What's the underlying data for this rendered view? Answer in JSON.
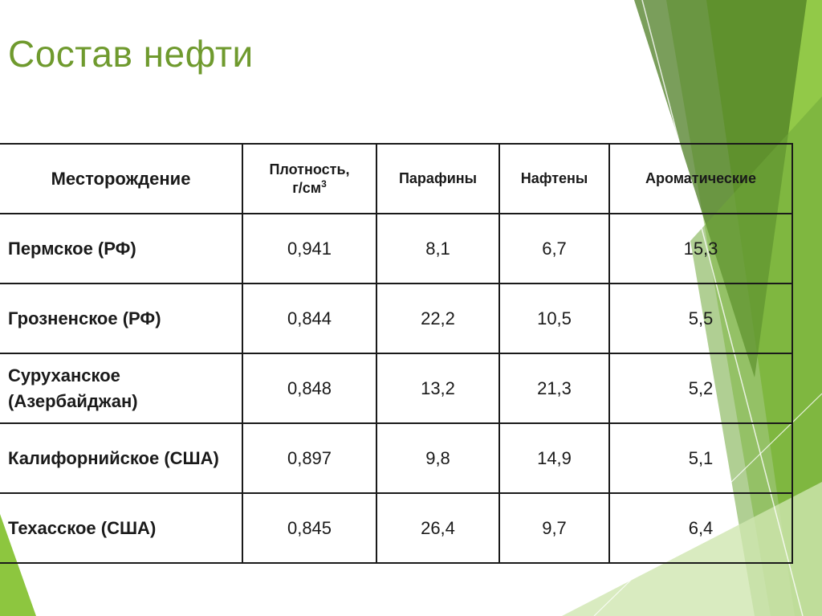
{
  "slide": {
    "title": "Состав нефти",
    "accent_color": "#6f9a2e",
    "decor_colors": [
      "#8dc63f",
      "#b5d98a",
      "#4e7d24",
      "#6fa83a"
    ]
  },
  "table": {
    "headers": {
      "field": "Месторождение",
      "density_line1": "Плотность,",
      "density_unit": "г/см",
      "density_exp": "3",
      "paraffins": "Парафины",
      "naphthenes": "Нафтены",
      "aromatics": "Ароматические"
    },
    "rows": [
      {
        "name": "Пермское (РФ)",
        "density": "0,941",
        "paraffins": "8,1",
        "naphthenes": "6,7",
        "aromatics": "15,3"
      },
      {
        "name": "Грозненское (РФ)",
        "density": "0,844",
        "paraffins": "22,2",
        "naphthenes": "10,5",
        "aromatics": "5,5"
      },
      {
        "name": "Суруханское (Азербайджан)",
        "density": "0,848",
        "paraffins": "13,2",
        "naphthenes": "21,3",
        "aromatics": "5,2"
      },
      {
        "name": "Калифорнийское (США)",
        "density": "0,897",
        "paraffins": "9,8",
        "naphthenes": "14,9",
        "aromatics": "5,1"
      },
      {
        "name": "Техасское (США)",
        "density": "0,845",
        "paraffins": "26,4",
        "naphthenes": "9,7",
        "aromatics": "6,4"
      }
    ]
  }
}
